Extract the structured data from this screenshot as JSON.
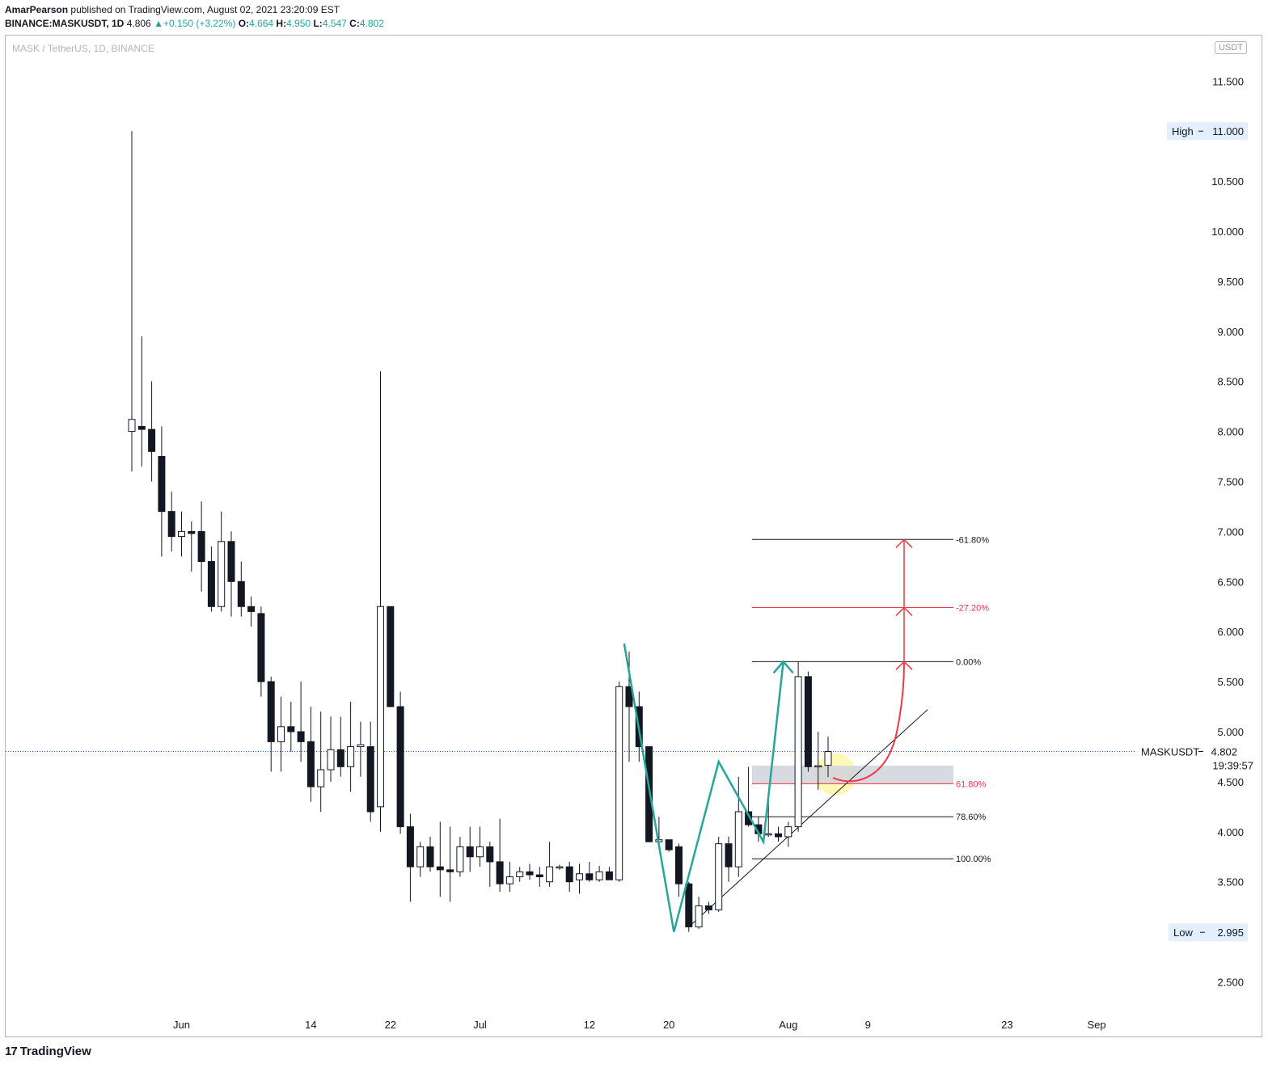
{
  "header": {
    "publisher": "AmarPearson",
    "published_text": "published on TradingView.com, August 02, 2021 23:20:09 EST",
    "symbol": "BINANCE:MASKUSDT, 1D",
    "last": "4.806",
    "change": "+0.150 (+3.22%)",
    "o_label": "O:",
    "o_value": "4.664",
    "h_label": "H:",
    "h_value": "4.950",
    "l_label": "L:",
    "l_value": "4.547",
    "c_label": "C:",
    "c_value": "4.802"
  },
  "pane": {
    "title": "MASK / TetherUS, 1D, BINANCE",
    "currency": "USDT"
  },
  "footer": {
    "brand": "TradingView",
    "logo_glyph": "17"
  },
  "colors": {
    "up_text": "#26a69a",
    "fib_red": "#f23645",
    "zigzag": "#26a69a",
    "price_line": "#2962ff",
    "highlight": "#fff59d"
  },
  "chart_data": {
    "type": "candlestick",
    "title": "MASK / TetherUS, 1D, BINANCE",
    "y_axis": {
      "ticks": [
        "2.500",
        "3.000",
        "3.500",
        "4.000",
        "4.500",
        "5.000",
        "5.500",
        "6.000",
        "6.500",
        "7.000",
        "7.500",
        "8.000",
        "8.500",
        "9.000",
        "9.500",
        "10.000",
        "10.500",
        "11.000",
        "11.500"
      ],
      "range": [
        2.2,
        11.75
      ]
    },
    "x_axis": {
      "ticks": [
        {
          "label": "Jun",
          "day": 5
        },
        {
          "label": "14",
          "day": 18
        },
        {
          "label": "22",
          "day": 26
        },
        {
          "label": "Jul",
          "day": 35
        },
        {
          "label": "12",
          "day": 46
        },
        {
          "label": "20",
          "day": 54
        },
        {
          "label": "Aug",
          "day": 66
        },
        {
          "label": "9",
          "day": 74
        },
        {
          "label": "23",
          "day": 88
        },
        {
          "label": "Sep",
          "day": 97
        }
      ]
    },
    "candles": [
      {
        "o": 8.0,
        "h": 11.0,
        "l": 7.6,
        "c": 8.12
      },
      {
        "o": 8.05,
        "h": 8.95,
        "l": 7.65,
        "c": 8.02
      },
      {
        "o": 8.02,
        "h": 8.5,
        "l": 7.5,
        "c": 7.8
      },
      {
        "o": 7.75,
        "h": 8.05,
        "l": 6.75,
        "c": 7.2
      },
      {
        "o": 7.2,
        "h": 7.4,
        "l": 6.8,
        "c": 6.95
      },
      {
        "o": 6.95,
        "h": 7.2,
        "l": 6.75,
        "c": 7.0
      },
      {
        "o": 7.0,
        "h": 7.1,
        "l": 6.6,
        "c": 6.98
      },
      {
        "o": 7.0,
        "h": 7.3,
        "l": 6.4,
        "c": 6.7
      },
      {
        "o": 6.7,
        "h": 6.85,
        "l": 6.2,
        "c": 6.25
      },
      {
        "o": 6.25,
        "h": 7.2,
        "l": 6.2,
        "c": 6.9
      },
      {
        "o": 6.9,
        "h": 7.0,
        "l": 6.15,
        "c": 6.5
      },
      {
        "o": 6.5,
        "h": 6.7,
        "l": 6.15,
        "c": 6.25
      },
      {
        "o": 6.25,
        "h": 6.35,
        "l": 6.05,
        "c": 6.2
      },
      {
        "o": 6.18,
        "h": 6.25,
        "l": 5.35,
        "c": 5.5
      },
      {
        "o": 5.5,
        "h": 5.55,
        "l": 4.6,
        "c": 4.9
      },
      {
        "o": 4.9,
        "h": 5.35,
        "l": 4.6,
        "c": 5.05
      },
      {
        "o": 5.05,
        "h": 5.3,
        "l": 4.8,
        "c": 5.0
      },
      {
        "o": 5.0,
        "h": 5.5,
        "l": 4.7,
        "c": 4.9
      },
      {
        "o": 4.9,
        "h": 5.25,
        "l": 4.3,
        "c": 4.45
      },
      {
        "o": 4.45,
        "h": 5.2,
        "l": 4.2,
        "c": 4.62
      },
      {
        "o": 4.62,
        "h": 5.15,
        "l": 4.5,
        "c": 4.82
      },
      {
        "o": 4.82,
        "h": 5.15,
        "l": 4.55,
        "c": 4.65
      },
      {
        "o": 4.65,
        "h": 5.3,
        "l": 4.4,
        "c": 4.85
      },
      {
        "o": 4.85,
        "h": 5.1,
        "l": 4.55,
        "c": 4.87
      },
      {
        "o": 4.85,
        "h": 5.1,
        "l": 4.1,
        "c": 4.2
      },
      {
        "o": 4.25,
        "h": 8.6,
        "l": 4.0,
        "c": 6.25
      },
      {
        "o": 6.25,
        "h": 6.25,
        "l": 5.25,
        "c": 5.25
      },
      {
        "o": 5.25,
        "h": 5.4,
        "l": 3.98,
        "c": 4.05
      },
      {
        "o": 4.05,
        "h": 4.18,
        "l": 3.3,
        "c": 3.65
      },
      {
        "o": 3.65,
        "h": 3.9,
        "l": 3.55,
        "c": 3.85
      },
      {
        "o": 3.85,
        "h": 3.95,
        "l": 3.6,
        "c": 3.65
      },
      {
        "o": 3.65,
        "h": 4.1,
        "l": 3.35,
        "c": 3.62
      },
      {
        "o": 3.62,
        "h": 4.05,
        "l": 3.3,
        "c": 3.6
      },
      {
        "o": 3.6,
        "h": 3.95,
        "l": 3.55,
        "c": 3.85
      },
      {
        "o": 3.85,
        "h": 4.05,
        "l": 3.6,
        "c": 3.75
      },
      {
        "o": 3.75,
        "h": 4.05,
        "l": 3.65,
        "c": 3.85
      },
      {
        "o": 3.85,
        "h": 3.9,
        "l": 3.45,
        "c": 3.7
      },
      {
        "o": 3.7,
        "h": 4.13,
        "l": 3.4,
        "c": 3.48
      },
      {
        "o": 3.48,
        "h": 3.7,
        "l": 3.4,
        "c": 3.55
      },
      {
        "o": 3.55,
        "h": 3.65,
        "l": 3.5,
        "c": 3.6
      },
      {
        "o": 3.6,
        "h": 3.68,
        "l": 3.52,
        "c": 3.57
      },
      {
        "o": 3.57,
        "h": 3.65,
        "l": 3.45,
        "c": 3.55
      },
      {
        "o": 3.5,
        "h": 3.9,
        "l": 3.45,
        "c": 3.65
      },
      {
        "o": 3.65,
        "h": 3.67,
        "l": 3.62,
        "c": 3.65
      },
      {
        "o": 3.65,
        "h": 3.7,
        "l": 3.4,
        "c": 3.5
      },
      {
        "o": 3.52,
        "h": 3.68,
        "l": 3.38,
        "c": 3.58
      },
      {
        "o": 3.58,
        "h": 3.7,
        "l": 3.5,
        "c": 3.52
      },
      {
        "o": 3.52,
        "h": 3.66,
        "l": 3.5,
        "c": 3.6
      },
      {
        "o": 3.6,
        "h": 3.65,
        "l": 3.52,
        "c": 3.52
      },
      {
        "o": 3.52,
        "h": 5.5,
        "l": 3.5,
        "c": 5.45
      },
      {
        "o": 5.45,
        "h": 5.8,
        "l": 4.7,
        "c": 5.25
      },
      {
        "o": 5.25,
        "h": 5.4,
        "l": 4.7,
        "c": 4.85
      },
      {
        "o": 4.85,
        "h": 4.85,
        "l": 3.9,
        "c": 3.9
      },
      {
        "o": 3.9,
        "h": 4.15,
        "l": 3.85,
        "c": 3.92
      },
      {
        "o": 3.92,
        "h": 3.92,
        "l": 3.8,
        "c": 3.82
      },
      {
        "o": 3.85,
        "h": 3.88,
        "l": 3.35,
        "c": 3.48
      },
      {
        "o": 3.48,
        "h": 3.5,
        "l": 3.0,
        "c": 3.05
      },
      {
        "o": 3.05,
        "h": 3.35,
        "l": 3.03,
        "c": 3.26
      },
      {
        "o": 3.26,
        "h": 3.3,
        "l": 3.18,
        "c": 3.22
      },
      {
        "o": 3.22,
        "h": 3.95,
        "l": 3.2,
        "c": 3.88
      },
      {
        "o": 3.88,
        "h": 3.95,
        "l": 3.5,
        "c": 3.65
      },
      {
        "o": 3.65,
        "h": 4.55,
        "l": 3.55,
        "c": 4.2
      },
      {
        "o": 4.2,
        "h": 4.65,
        "l": 4.05,
        "c": 4.07
      },
      {
        "o": 4.07,
        "h": 4.15,
        "l": 3.9,
        "c": 3.98
      },
      {
        "o": 3.98,
        "h": 4.35,
        "l": 3.95,
        "c": 3.98
      },
      {
        "o": 3.98,
        "h": 4.05,
        "l": 3.9,
        "c": 3.95
      },
      {
        "o": 3.95,
        "h": 4.1,
        "l": 3.85,
        "c": 4.05
      },
      {
        "o": 4.05,
        "h": 5.7,
        "l": 4.0,
        "c": 5.55
      },
      {
        "o": 5.55,
        "h": 5.6,
        "l": 4.6,
        "c": 4.65
      },
      {
        "o": 4.65,
        "h": 5.0,
        "l": 4.42,
        "c": 4.66
      },
      {
        "o": 4.664,
        "h": 4.95,
        "l": 4.547,
        "c": 4.802
      }
    ],
    "high_marker": {
      "label": "High",
      "value": "11.000"
    },
    "low_marker": {
      "label": "Low",
      "value": "2.995"
    },
    "last_price": {
      "label": "MASKUSDT",
      "value": "4.802",
      "countdown": "19:39:57"
    },
    "fib_levels": [
      {
        "label": "-61.80%",
        "price": 6.92,
        "color": "#131722"
      },
      {
        "label": "-27.20%",
        "price": 6.24,
        "color": "#f23645"
      },
      {
        "label": "0.00%",
        "price": 5.7,
        "color": "#131722"
      },
      {
        "label": "61.80%",
        "price": 4.48,
        "color": "#f23645"
      },
      {
        "label": "78.60%",
        "price": 4.15,
        "color": "#131722"
      },
      {
        "label": "100.00%",
        "price": 3.73,
        "color": "#131722"
      }
    ],
    "zone": {
      "from": 4.48,
      "to": 4.66
    },
    "zigzag": [
      [
        49.5,
        5.88
      ],
      [
        54.5,
        3.0
      ],
      [
        59,
        4.7
      ],
      [
        63.5,
        3.9
      ],
      [
        65.5,
        5.7
      ]
    ],
    "trendline": [
      [
        56,
        3.05
      ],
      [
        80,
        5.22
      ]
    ]
  }
}
